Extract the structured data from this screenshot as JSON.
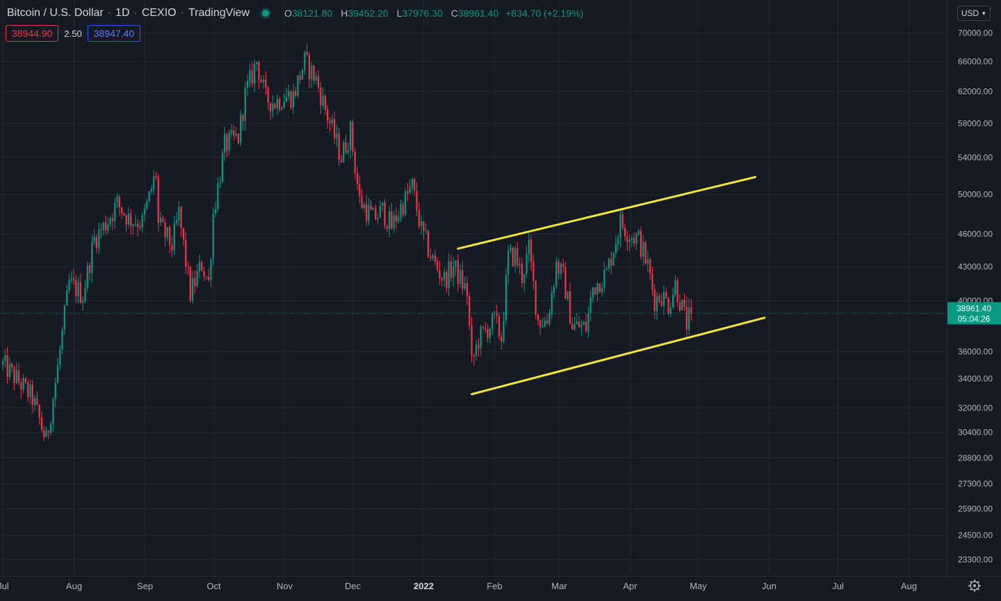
{
  "header": {
    "symbol": "Bitcoin / U.S. Dollar",
    "interval": "1D",
    "exchange": "CEXIO",
    "source": "TradingView",
    "ohlc": {
      "o": "38121.80",
      "h": "39452.20",
      "l": "37976.30",
      "c": "38961.40",
      "change": "+834.70 (+2.19%)"
    }
  },
  "quote": {
    "bid": "38944.90",
    "spread": "2.50",
    "ask": "38947.40"
  },
  "currency": "USD",
  "price_label": {
    "price": "38961.40",
    "countdown": "05:04:26"
  },
  "colors": {
    "up": "#089981",
    "down": "#f23645",
    "trendline": "#f5e92a",
    "background": "#161a25",
    "grid": "#232632"
  },
  "chart_data": {
    "type": "candlestick",
    "price_scale": "log",
    "ylim": [
      22500,
      75000
    ],
    "y_ticks": [
      {
        "v": 70000,
        "label": "70000.00"
      },
      {
        "v": 66000,
        "label": "66000.00"
      },
      {
        "v": 62000,
        "label": "62000.00"
      },
      {
        "v": 58000,
        "label": "58000.00"
      },
      {
        "v": 54000,
        "label": "54000.00"
      },
      {
        "v": 50000,
        "label": "50000.00"
      },
      {
        "v": 46000,
        "label": "46000.00"
      },
      {
        "v": 43000,
        "label": "43000.00"
      },
      {
        "v": 40000,
        "label": "40000.00"
      },
      {
        "v": 36000,
        "label": "36000.00"
      },
      {
        "v": 34000,
        "label": "34000.00"
      },
      {
        "v": 32000,
        "label": "32000.00"
      },
      {
        "v": 30400,
        "label": "30400.00"
      },
      {
        "v": 28800,
        "label": "28800.00"
      },
      {
        "v": 27300,
        "label": "27300.00"
      },
      {
        "v": 25900,
        "label": "25900.00"
      },
      {
        "v": 24500,
        "label": "24500.00"
      },
      {
        "v": 23300,
        "label": "23300.00"
      }
    ],
    "x_range": [
      "2021-07-01",
      "2022-08-31"
    ],
    "x_ticks": [
      {
        "date": "2021-07-01",
        "label": "Jul"
      },
      {
        "date": "2021-08-01",
        "label": "Aug"
      },
      {
        "date": "2021-09-01",
        "label": "Sep"
      },
      {
        "date": "2021-10-01",
        "label": "Oct"
      },
      {
        "date": "2021-11-01",
        "label": "Nov"
      },
      {
        "date": "2021-12-01",
        "label": "Dec"
      },
      {
        "date": "2022-01-01",
        "label": "2022"
      },
      {
        "date": "2022-02-01",
        "label": "Feb"
      },
      {
        "date": "2022-03-01",
        "label": "Mar"
      },
      {
        "date": "2022-04-01",
        "label": "Apr"
      },
      {
        "date": "2022-05-01",
        "label": "May"
      },
      {
        "date": "2022-06-01",
        "label": "Jun"
      },
      {
        "date": "2022-07-01",
        "label": "Jul"
      },
      {
        "date": "2022-08-01",
        "label": "Aug"
      }
    ],
    "close_path": [
      [
        "2021-07-01",
        35000
      ],
      [
        "2021-07-08",
        33800
      ],
      [
        "2021-07-14",
        32600
      ],
      [
        "2021-07-20",
        29800
      ],
      [
        "2021-07-25",
        34800
      ],
      [
        "2021-07-30",
        41500
      ],
      [
        "2021-08-05",
        40500
      ],
      [
        "2021-08-10",
        45500
      ],
      [
        "2021-08-15",
        47000
      ],
      [
        "2021-08-20",
        49000
      ],
      [
        "2021-08-25",
        47500
      ],
      [
        "2021-08-31",
        47100
      ],
      [
        "2021-09-06",
        52300
      ],
      [
        "2021-09-07",
        46900
      ],
      [
        "2021-09-13",
        44900
      ],
      [
        "2021-09-16",
        48000
      ],
      [
        "2021-09-21",
        40600
      ],
      [
        "2021-09-26",
        43200
      ],
      [
        "2021-09-29",
        41500
      ],
      [
        "2021-10-01",
        48000
      ],
      [
        "2021-10-06",
        55300
      ],
      [
        "2021-10-12",
        56300
      ],
      [
        "2021-10-15",
        61500
      ],
      [
        "2021-10-20",
        66000
      ],
      [
        "2021-10-24",
        61000
      ],
      [
        "2021-10-28",
        60500
      ],
      [
        "2021-11-01",
        61300
      ],
      [
        "2021-11-05",
        61400
      ],
      [
        "2021-11-10",
        66000
      ],
      [
        "2021-11-15",
        63500
      ],
      [
        "2021-11-20",
        58800
      ],
      [
        "2021-11-26",
        54000
      ],
      [
        "2021-11-30",
        57000
      ],
      [
        "2021-12-04",
        49300
      ],
      [
        "2021-12-10",
        47500
      ],
      [
        "2021-12-14",
        48300
      ],
      [
        "2021-12-18",
        46700
      ],
      [
        "2021-12-22",
        48600
      ],
      [
        "2021-12-27",
        50800
      ],
      [
        "2021-12-31",
        46300
      ],
      [
        "2022-01-05",
        43500
      ],
      [
        "2022-01-10",
        41800
      ],
      [
        "2022-01-14",
        43000
      ],
      [
        "2022-01-20",
        40700
      ],
      [
        "2022-01-22",
        35000
      ],
      [
        "2022-01-25",
        36900
      ],
      [
        "2022-02-01",
        38400
      ],
      [
        "2022-02-04",
        37000
      ],
      [
        "2022-02-07",
        43800
      ],
      [
        "2022-02-10",
        44000
      ],
      [
        "2022-02-13",
        42100
      ],
      [
        "2022-02-16",
        44500
      ],
      [
        "2022-02-20",
        38400
      ],
      [
        "2022-02-24",
        38300
      ],
      [
        "2022-02-28",
        43200
      ],
      [
        "2022-03-03",
        42000
      ],
      [
        "2022-03-07",
        38000
      ],
      [
        "2022-03-13",
        37800
      ],
      [
        "2022-03-16",
        41100
      ],
      [
        "2022-03-22",
        42400
      ],
      [
        "2022-03-28",
        47100
      ],
      [
        "2022-04-01",
        46000
      ],
      [
        "2022-04-05",
        45500
      ],
      [
        "2022-04-09",
        43000
      ],
      [
        "2022-04-12",
        40100
      ],
      [
        "2022-04-15",
        40500
      ],
      [
        "2022-04-18",
        39700
      ],
      [
        "2022-04-21",
        41400
      ],
      [
        "2022-04-24",
        39400
      ],
      [
        "2022-04-26",
        38100
      ],
      [
        "2022-04-28",
        38961
      ]
    ],
    "trendlines": [
      {
        "start": [
          "2022-01-16",
          44600
        ],
        "end": [
          "2022-05-26",
          51800
        ]
      },
      {
        "start": [
          "2022-01-22",
          32900
        ],
        "end": [
          "2022-05-30",
          38600
        ]
      }
    ],
    "last_price": 38961.4
  }
}
